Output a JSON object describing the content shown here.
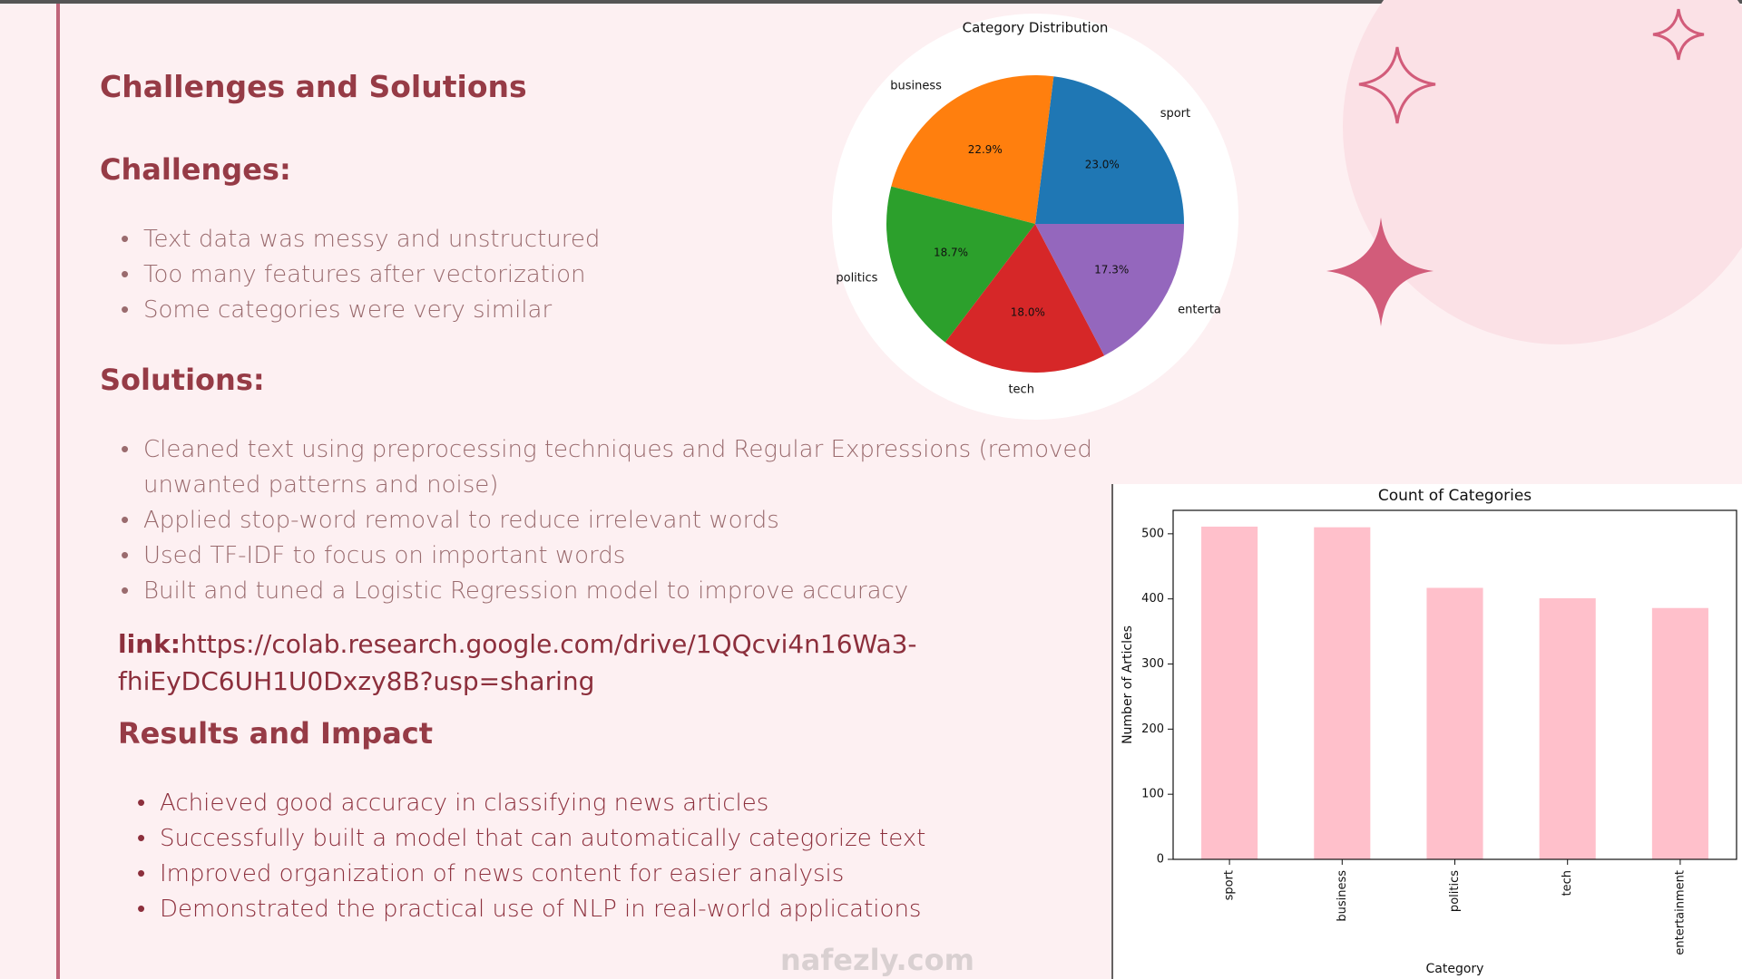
{
  "slide": {
    "title": "Challenges and Solutions",
    "challenges": {
      "heading": "Challenges:",
      "items": [
        "Text data was messy and unstructured",
        "Too many features after vectorization",
        "Some categories were very similar"
      ]
    },
    "solutions": {
      "heading": "Solutions:",
      "items": [
        "Cleaned text using preprocessing techniques and Regular Expressions (removed unwanted patterns and noise)",
        "Applied stop-word removal to reduce irrelevant words",
        "Used TF-IDF to focus on important words",
        "Built and tuned a Logistic Regression model to improve accuracy"
      ]
    },
    "link": {
      "label": "link:",
      "url": "https://colab.research.google.com/drive/1QQcvi4n16Wa3-fhiEyDC6UH1U0Dxzy8B?usp=sharing"
    },
    "results": {
      "heading": "Results and Impact",
      "items": [
        "Achieved good accuracy in classifying news articles",
        "Successfully built a model that can automatically categorize text",
        "Improved organization of news content for easier analysis",
        "Demonstrated the practical use of NLP in real-world applications"
      ]
    },
    "watermark": "nafezly.com"
  },
  "chart_data": [
    {
      "type": "pie",
      "title": "Category Distribution",
      "categories": [
        "sport",
        "business",
        "politics",
        "tech",
        "enterta"
      ],
      "values": [
        23.0,
        22.9,
        18.7,
        18.0,
        17.3
      ],
      "value_labels": [
        "23.0%",
        "22.9%",
        "18.7%",
        "18.0%",
        "17.3%"
      ],
      "colors": [
        "#1f77b4",
        "#ff7f0e",
        "#2ca02c",
        "#d62728",
        "#9467bd"
      ]
    },
    {
      "type": "bar",
      "title": "Count of Categories",
      "x_label": "Category",
      "y_label": "Number of Articles",
      "categories": [
        "sport",
        "business",
        "politics",
        "tech",
        "entertainment"
      ],
      "values": [
        511,
        510,
        417,
        401,
        386
      ],
      "color": "#ffc0cb",
      "ylim": [
        0,
        536
      ],
      "yticks": [
        0,
        100,
        200,
        300,
        400,
        500
      ]
    }
  ]
}
